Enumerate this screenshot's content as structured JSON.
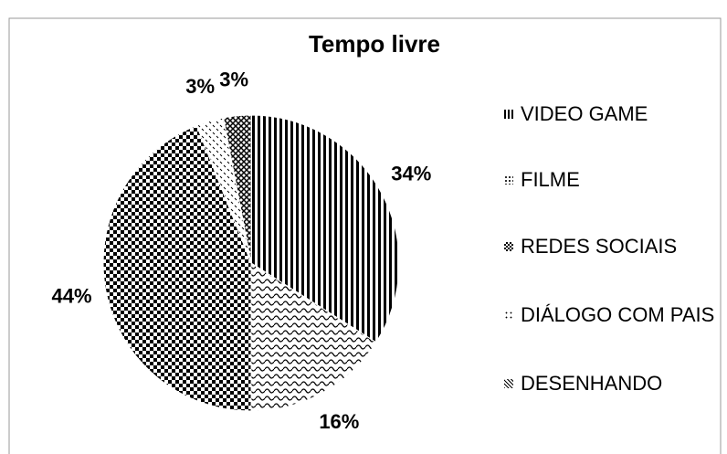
{
  "chart_data": {
    "type": "pie",
    "title": "Tempo livre",
    "categories": [
      "VIDEO GAME",
      "FILME",
      "REDES SOCIAIS",
      "DIÁLOGO COM PAIS",
      "DESENHANDO"
    ],
    "values": [
      34,
      16,
      44,
      3,
      3
    ],
    "value_labels": [
      "34%",
      "16%",
      "44%",
      "3%",
      "3%"
    ],
    "legend": "right"
  }
}
